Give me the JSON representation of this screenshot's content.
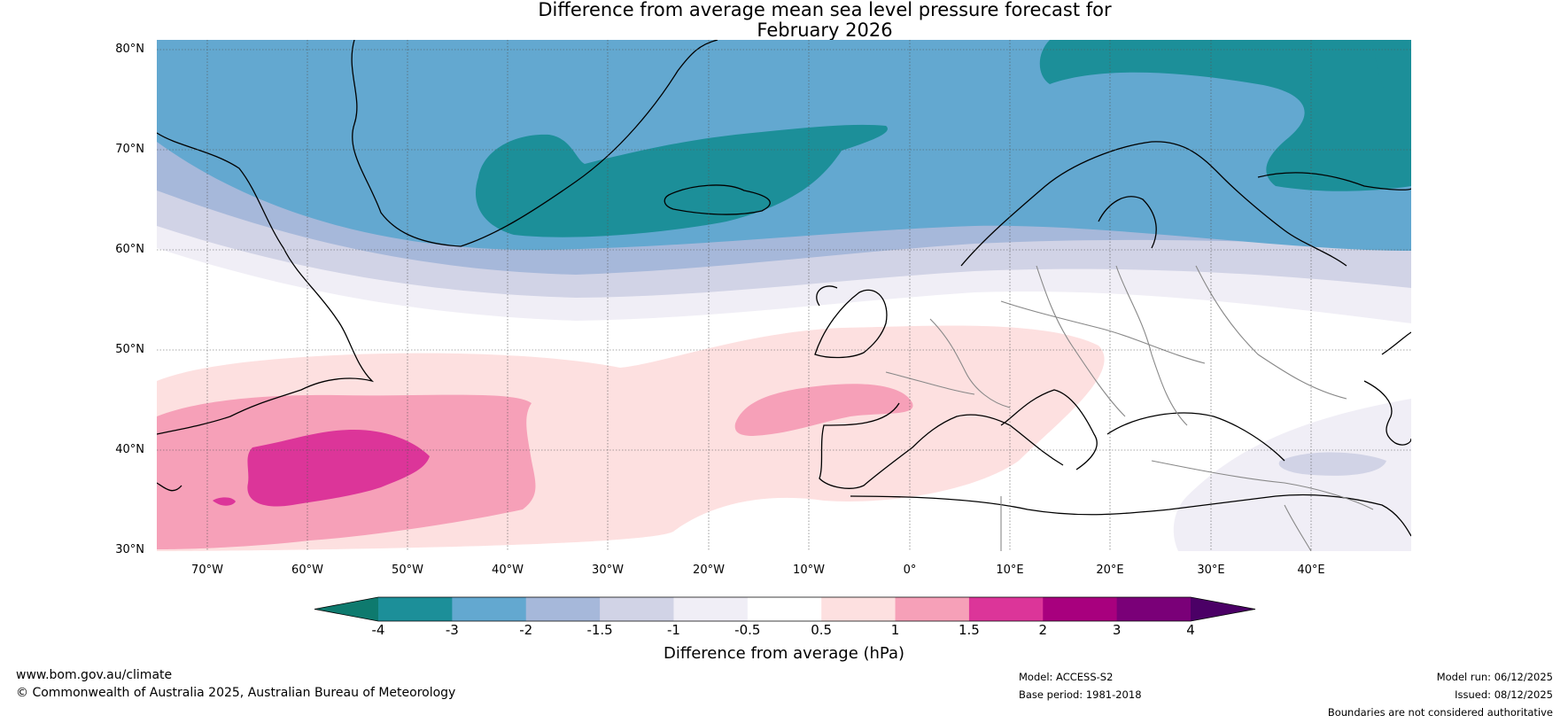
{
  "title": {
    "line1": "Difference from average mean sea level pressure forecast for",
    "line2": "February 2026"
  },
  "map": {
    "lat_labels": [
      "80°N",
      "70°N",
      "60°N",
      "50°N",
      "40°N",
      "30°N"
    ],
    "lon_labels": [
      "70°W",
      "60°W",
      "50°W",
      "40°W",
      "30°W",
      "20°W",
      "10°W",
      "0°",
      "10°E",
      "20°E",
      "30°E",
      "40°E"
    ],
    "extent": {
      "lon_min": -75,
      "lon_max": 50,
      "lat_min": 30,
      "lat_max": 80
    }
  },
  "legend": {
    "ticks": [
      "-4",
      "-3",
      "-2",
      "-1.5",
      "-1",
      "-0.5",
      "0.5",
      "1",
      "1.5",
      "2",
      "3",
      "4"
    ],
    "label": "Difference from average (hPa)",
    "colors": [
      "#0e7a6e",
      "#1c8f99",
      "#63a8d0",
      "#a6b8da",
      "#d1d3e6",
      "#f0eef6",
      "#ffffff",
      "#fde0e0",
      "#f6a0b8",
      "#dc3599",
      "#a8007e",
      "#7a0078",
      "#4b0066"
    ]
  },
  "footer": {
    "website": "www.bom.gov.au/climate",
    "copyright": "© Commonwealth of Australia 2025, Australian Bureau of Meteorology",
    "model": "Model: ACCESS-S2",
    "base_period": "Base period: 1981-2018",
    "model_run": "Model run: 06/12/2025",
    "issued": "Issued: 08/12/2025",
    "disclaimer": "Boundaries are not considered authoritative"
  }
}
